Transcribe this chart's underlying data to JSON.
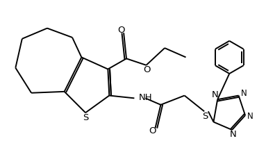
{
  "bg_color": "#ffffff",
  "line_color": "#000000",
  "bond_lw": 1.4,
  "font_size": 8.5,
  "fig_width": 3.83,
  "fig_height": 2.39,
  "dpi": 100,
  "xlim": [
    0,
    10
  ],
  "ylim": [
    0,
    6.25
  ]
}
